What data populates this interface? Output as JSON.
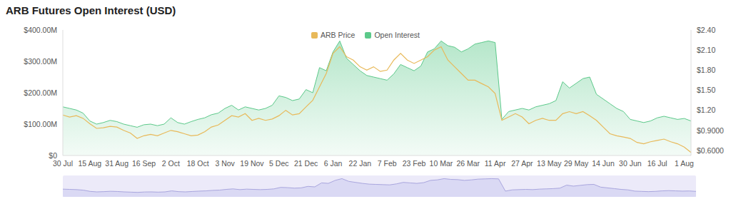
{
  "chart_data": {
    "type": "line",
    "title": "ARB Futures Open Interest (USD)",
    "grid": false,
    "legend": "top",
    "categories": [
      "30 Jul",
      null,
      null,
      null,
      "15 Aug",
      null,
      null,
      null,
      "31 Aug",
      null,
      null,
      null,
      "16 Sep",
      null,
      null,
      null,
      "2 Oct",
      null,
      null,
      null,
      "18 Oct",
      null,
      null,
      null,
      "3 Nov",
      null,
      null,
      null,
      "19 Nov",
      null,
      null,
      null,
      "5 Dec",
      null,
      null,
      null,
      "21 Dec",
      null,
      null,
      null,
      "6 Jan",
      null,
      null,
      null,
      "22 Jan",
      null,
      null,
      null,
      "7 Feb",
      null,
      null,
      null,
      "23 Feb",
      null,
      null,
      null,
      "10 Mar",
      null,
      null,
      null,
      "26 Mar",
      null,
      null,
      null,
      "11 Apr",
      null,
      null,
      null,
      "27 Apr",
      null,
      null,
      null,
      "13 May",
      null,
      null,
      null,
      "29 May",
      null,
      null,
      null,
      "14 Jun",
      null,
      null,
      null,
      "30 Jun",
      null,
      null,
      null,
      "16 Jul",
      null,
      null,
      null,
      "1 Aug",
      null
    ],
    "ylim": [
      0,
      400000000
    ],
    "yticks": [
      {
        "value": 0,
        "label": "$0"
      },
      {
        "value": 100000000,
        "label": "$100.00M"
      },
      {
        "value": 200000000,
        "label": "$200.00M"
      },
      {
        "value": 300000000,
        "label": "$300.00M"
      },
      {
        "value": 400000000,
        "label": "$400.00M"
      }
    ],
    "y2lim": [
      0.525,
      2.4
    ],
    "y2ticks": [
      {
        "value": 0.6,
        "label": "$0.6000"
      },
      {
        "value": 0.9,
        "label": "$0.9000"
      },
      {
        "value": 1.2,
        "label": "$1.20"
      },
      {
        "value": 1.5,
        "label": "$1.50"
      },
      {
        "value": 1.8,
        "label": "$1.80"
      },
      {
        "value": 2.1,
        "label": "$2.10"
      },
      {
        "value": 2.4,
        "label": "$2.40"
      }
    ],
    "series": [
      {
        "name": "ARB Price",
        "type": "line",
        "axis": "y2",
        "color": "#e8b95a",
        "values": [
          1.13,
          1.1,
          1.12,
          1.08,
          1.0,
          0.93,
          0.94,
          0.96,
          0.95,
          0.9,
          0.86,
          0.78,
          0.82,
          0.84,
          0.82,
          0.86,
          0.9,
          0.88,
          0.85,
          0.82,
          0.83,
          0.88,
          0.95,
          0.98,
          1.05,
          1.12,
          1.1,
          1.15,
          1.05,
          1.08,
          1.05,
          1.07,
          1.12,
          1.2,
          1.13,
          1.15,
          1.25,
          1.35,
          1.55,
          1.75,
          2.05,
          2.15,
          2.0,
          1.95,
          1.85,
          1.8,
          1.85,
          1.78,
          1.8,
          1.95,
          2.05,
          1.95,
          1.9,
          1.95,
          2.0,
          2.1,
          2.15,
          1.95,
          1.85,
          1.75,
          1.65,
          1.65,
          1.6,
          1.55,
          1.45,
          1.05,
          1.1,
          1.15,
          1.1,
          1.0,
          1.05,
          1.08,
          1.05,
          1.05,
          1.15,
          1.18,
          1.15,
          1.18,
          1.12,
          1.05,
          0.95,
          0.85,
          0.82,
          0.8,
          0.78,
          0.72,
          0.7,
          0.73,
          0.75,
          0.77,
          0.73,
          0.7,
          0.65,
          0.57
        ]
      },
      {
        "name": "Open Interest",
        "type": "area",
        "axis": "y",
        "color": "#5cc98a",
        "values": [
          155000000,
          150000000,
          145000000,
          135000000,
          110000000,
          100000000,
          105000000,
          112000000,
          108000000,
          100000000,
          95000000,
          90000000,
          98000000,
          100000000,
          95000000,
          100000000,
          120000000,
          105000000,
          100000000,
          108000000,
          115000000,
          120000000,
          130000000,
          135000000,
          150000000,
          160000000,
          145000000,
          155000000,
          150000000,
          145000000,
          150000000,
          160000000,
          190000000,
          185000000,
          175000000,
          180000000,
          210000000,
          200000000,
          280000000,
          270000000,
          330000000,
          365000000,
          310000000,
          290000000,
          270000000,
          255000000,
          250000000,
          245000000,
          240000000,
          260000000,
          290000000,
          280000000,
          270000000,
          285000000,
          330000000,
          340000000,
          365000000,
          350000000,
          345000000,
          330000000,
          340000000,
          355000000,
          360000000,
          365000000,
          360000000,
          115000000,
          140000000,
          145000000,
          150000000,
          145000000,
          155000000,
          160000000,
          165000000,
          175000000,
          235000000,
          215000000,
          230000000,
          245000000,
          250000000,
          195000000,
          180000000,
          165000000,
          150000000,
          140000000,
          115000000,
          110000000,
          105000000,
          110000000,
          120000000,
          125000000,
          120000000,
          115000000,
          118000000,
          110000000
        ]
      }
    ]
  }
}
